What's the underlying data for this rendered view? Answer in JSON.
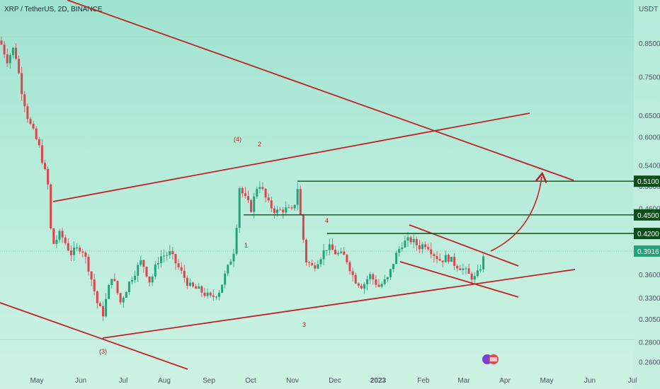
{
  "chart_data": {
    "type": "candlestick",
    "title": "XRP / TetherUS, 2D, BINANCE",
    "currency": "USDT",
    "y_scale": "log",
    "ylim": [
      0.255,
      1.0
    ],
    "y_ticks": [
      "0.8500",
      "0.7500",
      "0.6500",
      "0.6000",
      "0.5400",
      "0.5000",
      "0.4600",
      "0.3600",
      "0.3300",
      "0.3050",
      "0.2800",
      "0.2600"
    ],
    "x_ticks": [
      "May",
      "Jun",
      "Jul",
      "Aug",
      "Sep",
      "Oct",
      "Nov",
      "Dec",
      "2023",
      "Feb",
      "Mar",
      "Apr",
      "May",
      "Jun",
      "Jul"
    ],
    "current_price": "0.3916",
    "levels": [
      {
        "value": 0.51,
        "label": "0.5100",
        "color": "#0b4d1a"
      },
      {
        "value": 0.45,
        "label": "0.4500",
        "color": "#0b4d1a"
      },
      {
        "value": 0.42,
        "label": "0.4200",
        "color": "#0b4d1a"
      }
    ],
    "wave_labels": [
      "(4)",
      "2",
      "1",
      "4",
      "3",
      "(3)"
    ],
    "colors": {
      "up": "#22a37a",
      "down": "#e0424f",
      "trendline": "#c0202a",
      "level": "#0b4d1a",
      "price_tag": "#22a37a"
    }
  }
}
